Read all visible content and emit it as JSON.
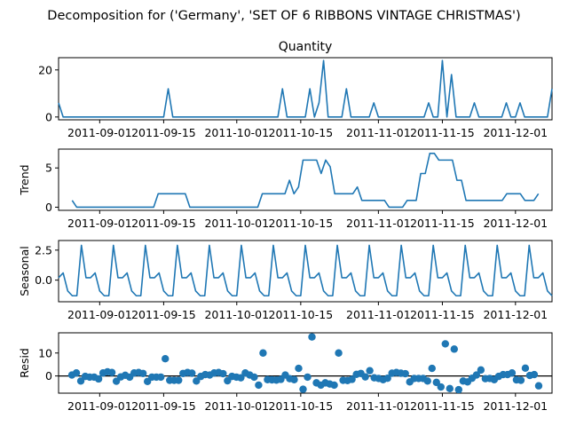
{
  "figure": {
    "suptitle": "Decomposition for ('Germany', 'SET OF 6 RIBBONS VINTAGE CHRISTMAS')"
  },
  "colors": {
    "series": "#1f77b4",
    "axis": "#000000",
    "zero_line": "#000000"
  },
  "chart_data": [
    {
      "type": "line",
      "title": "Quantity",
      "ylabel": "",
      "x_start": "2011-08-23",
      "x_end": "2011-12-09",
      "xtick_labels": [
        "2011-09-01",
        "2011-09-15",
        "2011-10-01",
        "2011-10-15",
        "2011-11-01",
        "2011-11-15",
        "2011-12-01"
      ],
      "ytick_labels": [
        "0",
        "20"
      ],
      "ylim": [
        -1.2,
        25.2
      ],
      "values": [
        6,
        0,
        0,
        0,
        0,
        0,
        0,
        0,
        0,
        0,
        0,
        0,
        0,
        0,
        0,
        0,
        0,
        0,
        0,
        0,
        0,
        0,
        0,
        0,
        12,
        0,
        0,
        0,
        0,
        0,
        0,
        0,
        0,
        0,
        0,
        0,
        0,
        0,
        0,
        0,
        0,
        0,
        0,
        0,
        0,
        0,
        0,
        0,
        0,
        12,
        0,
        0,
        0,
        0,
        0,
        12,
        0,
        6,
        24,
        0,
        0,
        0,
        0,
        12,
        0,
        0,
        0,
        0,
        0,
        6,
        0,
        0,
        0,
        0,
        0,
        0,
        0,
        0,
        0,
        0,
        0,
        6,
        0,
        0,
        24,
        0,
        18,
        0,
        0,
        0,
        0,
        6,
        0,
        0,
        0,
        0,
        0,
        0,
        6,
        0,
        0,
        6,
        0,
        0,
        0,
        0,
        0,
        0,
        12
      ]
    },
    {
      "type": "line",
      "title": "",
      "ylabel": "Trend",
      "x_start": "2011-08-23",
      "x_end": "2011-12-09",
      "xtick_labels": [
        "2011-09-01",
        "2011-09-15",
        "2011-10-01",
        "2011-10-15",
        "2011-11-01",
        "2011-11-15",
        "2011-12-01"
      ],
      "ytick_labels": [
        "0",
        "5"
      ],
      "ylim": [
        -0.4,
        7.4
      ],
      "values": [
        null,
        null,
        null,
        0.86,
        0,
        0,
        0,
        0,
        0,
        0,
        0,
        0,
        0,
        0,
        0,
        0,
        0,
        0,
        0,
        0,
        0,
        0,
        1.71,
        1.71,
        1.71,
        1.71,
        1.71,
        1.71,
        1.71,
        0,
        0,
        0,
        0,
        0,
        0,
        0,
        0,
        0,
        0,
        0,
        0,
        0,
        0,
        0,
        0,
        1.71,
        1.71,
        1.71,
        1.71,
        1.71,
        1.71,
        3.43,
        1.71,
        2.57,
        6,
        6,
        6,
        6,
        4.29,
        6,
        5.14,
        1.71,
        1.71,
        1.71,
        1.71,
        1.71,
        2.57,
        0.86,
        0.86,
        0.86,
        0.86,
        0.86,
        0.86,
        0,
        0,
        0,
        0,
        0.86,
        0.86,
        0.86,
        4.29,
        4.29,
        6.86,
        6.86,
        6,
        6,
        6,
        6,
        3.43,
        3.43,
        0.86,
        0.86,
        0.86,
        0.86,
        0.86,
        0.86,
        0.86,
        0.86,
        0.86,
        1.71,
        1.71,
        1.71,
        1.71,
        0.86,
        0.86,
        0.86,
        1.71,
        null,
        null,
        null
      ]
    },
    {
      "type": "line",
      "title": "",
      "ylabel": "Seasonal",
      "x_start": "2011-08-23",
      "x_end": "2011-12-09",
      "xtick_labels": [
        "2011-09-01",
        "2011-09-15",
        "2011-10-01",
        "2011-10-15",
        "2011-11-01",
        "2011-11-15",
        "2011-12-01"
      ],
      "ytick_labels": [
        "0.0",
        "2.5"
      ],
      "ylim": [
        -1.8,
        3.3
      ],
      "pattern": [
        0.2,
        0.6,
        -0.9,
        -1.3,
        -1.3,
        2.9,
        0.2
      ],
      "count": 109
    },
    {
      "type": "scatter",
      "title": "",
      "ylabel": "Resid",
      "x_start": "2011-08-23",
      "x_end": "2011-12-09",
      "xtick_labels": [
        "2011-09-01",
        "2011-09-15",
        "2011-10-01",
        "2011-10-15",
        "2011-11-01",
        "2011-11-15",
        "2011-12-01"
      ],
      "ytick_labels": [
        "0",
        "10"
      ],
      "ylim": [
        -7.5,
        18.8
      ],
      "baseline": 0,
      "values": [
        null,
        null,
        null,
        0.4,
        1.3,
        -2.2,
        -0.2,
        -0.5,
        -0.5,
        -1.3,
        1.3,
        1.8,
        1.5,
        -2.3,
        -0.4,
        0.3,
        -0.5,
        1.3,
        1.5,
        1.1,
        -2.4,
        -0.5,
        -0.5,
        -0.5,
        7.5,
        -1.9,
        -1.9,
        -1.9,
        1.1,
        1.5,
        1.2,
        -2.2,
        -0.2,
        0.6,
        0.4,
        1.3,
        1.5,
        1.0,
        -2.1,
        -0.2,
        -0.5,
        -0.8,
        1.3,
        0.4,
        -0.5,
        -4.0,
        10.0,
        -1.6,
        -1.7,
        -1.8,
        -1.5,
        0.4,
        -1.2,
        -1.6,
        3.3,
        -5.8,
        -0.5,
        17.0,
        -3.0,
        -4.0,
        -3.0,
        -3.5,
        -4.0,
        10.0,
        -1.9,
        -2.0,
        -1.5,
        0.7,
        1.1,
        -0.4,
        2.3,
        -0.8,
        -1.1,
        -1.6,
        -1.0,
        1.2,
        1.5,
        1.2,
        1.0,
        -2.6,
        -1.1,
        -1.1,
        -1.1,
        -2.2,
        3.3,
        -2.8,
        -4.8,
        14.0,
        -5.5,
        11.7,
        -6.0,
        -2.2,
        -2.6,
        -1.0,
        0.4,
        2.6,
        -1.2,
        -1.1,
        -1.6,
        -0.2,
        0.6,
        0.6,
        1.3,
        -1.7,
        -1.9,
        3.4,
        0.2,
        0.6,
        -4.3,
        null,
        null,
        null
      ]
    }
  ]
}
